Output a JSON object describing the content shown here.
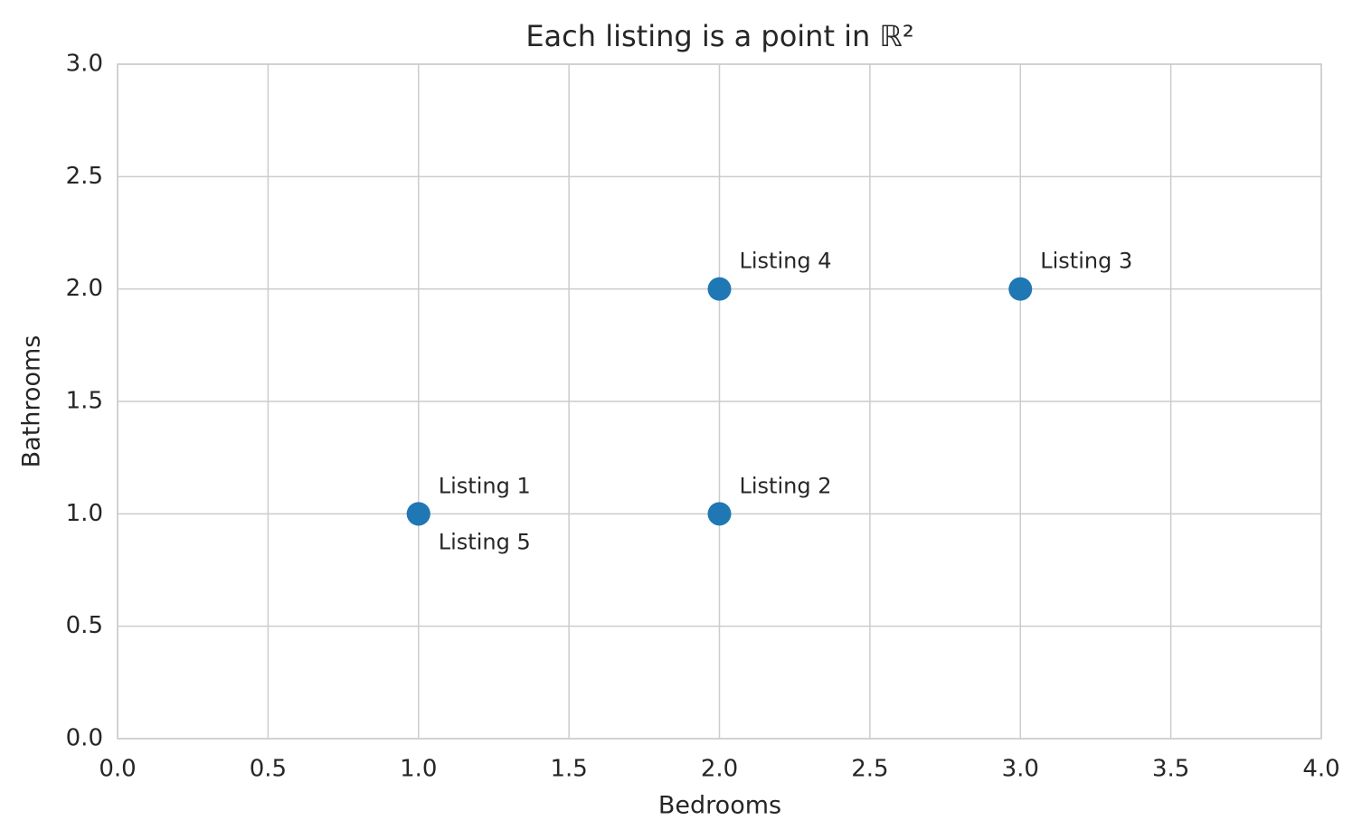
{
  "chart_data": {
    "type": "scatter",
    "title": "Each listing is a point in ℝ²",
    "x_label": "Bedrooms",
    "y_label": "Bathrooms",
    "x": [
      1,
      2,
      3,
      2,
      1
    ],
    "y": [
      1,
      1,
      2,
      2,
      1
    ],
    "labels": [
      "Listing 1",
      "Listing 2",
      "Listing 3",
      "Listing 4",
      "Listing 5"
    ],
    "color": "#1f77b4",
    "xlim": [
      0,
      4
    ],
    "ylim": [
      0,
      3
    ],
    "xticks": [
      {
        "value": 0,
        "label": "0.0"
      },
      0.5,
      {
        "value": 1,
        "label": "1.0"
      },
      1.5,
      {
        "value": 2,
        "label": "2.0"
      },
      2.5,
      {
        "value": 3,
        "label": "3.0"
      },
      3.5,
      {
        "value": 4,
        "label": "4.0"
      }
    ],
    "yticks": [
      {
        "value": 0,
        "label": "0.0"
      },
      0.5,
      {
        "value": 1,
        "label": "1.0"
      },
      1.5,
      {
        "value": 2,
        "label": "2.0"
      },
      2.5,
      {
        "value": 3,
        "label": "3.0"
      }
    ],
    "grid": true
  }
}
